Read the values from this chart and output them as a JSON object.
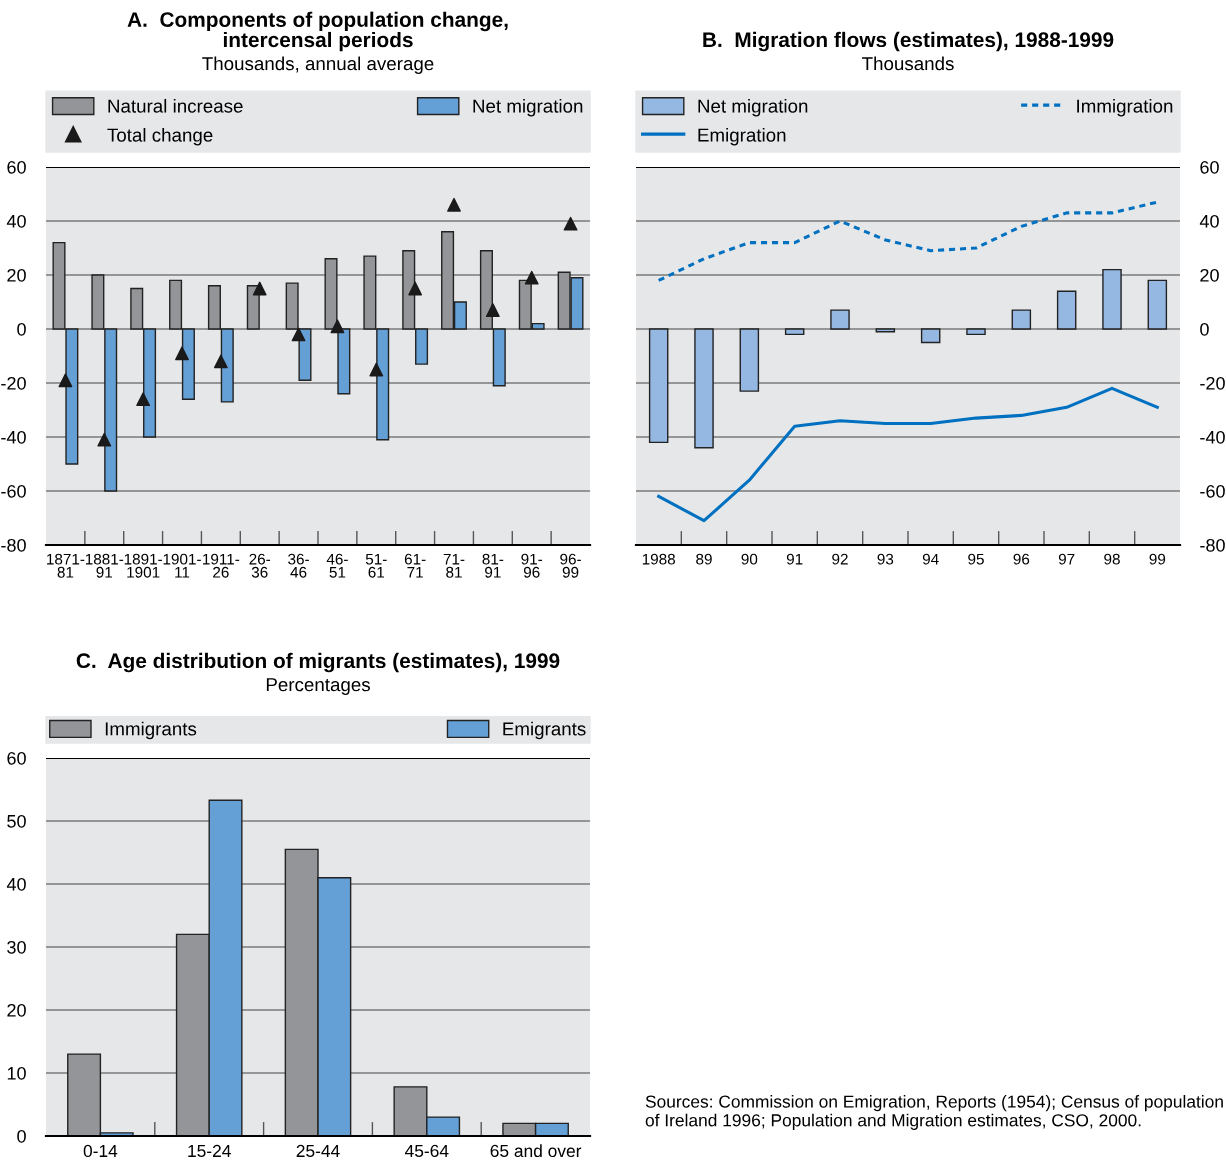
{
  "chart_data": [
    {
      "type": "bar",
      "title": "A.  Components of population change,\nintercensal periods",
      "subtitle": "Thousands, annual average",
      "categories": [
        "1871-\n81",
        "1881-\n91",
        "1891-\n1901",
        "1901-\n11",
        "1911-\n26",
        "26-\n36",
        "36-\n46",
        "46-\n51",
        "51-\n61",
        "61-\n71",
        "71-\n81",
        "81-\n91",
        "91-\n96",
        "96-\n99"
      ],
      "series": [
        {
          "name": "Natural increase",
          "color": "#939598",
          "values": [
            32,
            20,
            15,
            18,
            16,
            16,
            17,
            26,
            27,
            29,
            36,
            29,
            18,
            21
          ]
        },
        {
          "name": "Net migration",
          "color": "#649fd6",
          "values": [
            -50,
            -60,
            -40,
            -26,
            -27,
            null,
            -19,
            -24,
            -41,
            -13,
            10,
            -21,
            2,
            19
          ]
        },
        {
          "name": "Total change",
          "type": "scatter",
          "color": "#1a1a1a",
          "marker": "triangle",
          "values": [
            -19,
            -41,
            -26,
            -9,
            -12,
            15,
            -2,
            1,
            -15,
            15,
            46,
            7,
            19,
            39
          ]
        }
      ],
      "ylim": [
        -80,
        60
      ],
      "yticks": [
        -80,
        -60,
        -40,
        -20,
        0,
        20,
        40,
        60
      ],
      "grid": "y",
      "legend": "top"
    },
    {
      "type": "bar",
      "title": "B.  Migration flows (estimates), 1988-1999",
      "subtitle": "Thousands",
      "categories": [
        "1988",
        "89",
        "90",
        "91",
        "92",
        "93",
        "94",
        "95",
        "96",
        "97",
        "98",
        "99"
      ],
      "series": [
        {
          "name": "Net migration",
          "axis": "y2",
          "color": "#95b8e3",
          "values": [
            -42,
            -44,
            -23,
            -2,
            7,
            -1,
            -5,
            -2,
            7,
            14,
            22,
            18
          ]
        },
        {
          "name": "Immigration",
          "type": "line",
          "axis": "y2",
          "color": "#0070c0",
          "line_style": "dotted",
          "values": [
            18,
            26,
            32,
            32,
            40,
            33,
            29,
            30,
            38,
            43,
            43,
            47
          ]
        },
        {
          "name": "Emigration",
          "type": "line",
          "axis": "y2",
          "color": "#0070c0",
          "line_style": "solid",
          "values": [
            -62,
            -71,
            -56,
            -36,
            -34,
            -35,
            -35,
            -33,
            -32,
            -29,
            -22,
            -29
          ]
        }
      ],
      "y2lim": [
        -80,
        60
      ],
      "y2ticks": [
        -80,
        -60,
        -40,
        -20,
        0,
        20,
        40,
        60
      ],
      "grid": "y",
      "legend": "top"
    },
    {
      "type": "bar",
      "title": "C.  Age distribution of migrants (estimates), 1999",
      "subtitle": "Percentages",
      "categories": [
        "0-14",
        "15-24",
        "25-44",
        "45-64",
        "65 and over"
      ],
      "series": [
        {
          "name": "Immigrants",
          "color": "#939598",
          "values": [
            13,
            32,
            45.5,
            7.8,
            2
          ]
        },
        {
          "name": "Emigrants",
          "color": "#649fd6",
          "values": [
            0.5,
            53.3,
            41,
            3,
            2
          ]
        }
      ],
      "ylim": [
        0,
        60
      ],
      "yticks": [
        0,
        10,
        20,
        30,
        40,
        50,
        60
      ],
      "grid": "y",
      "legend": "top",
      "annotations": [
        "Sources: Commission on Emigration, Reports (1954); Census of population of Ireland 1996; Population and Migration estimates, CSO, 2000."
      ]
    }
  ]
}
